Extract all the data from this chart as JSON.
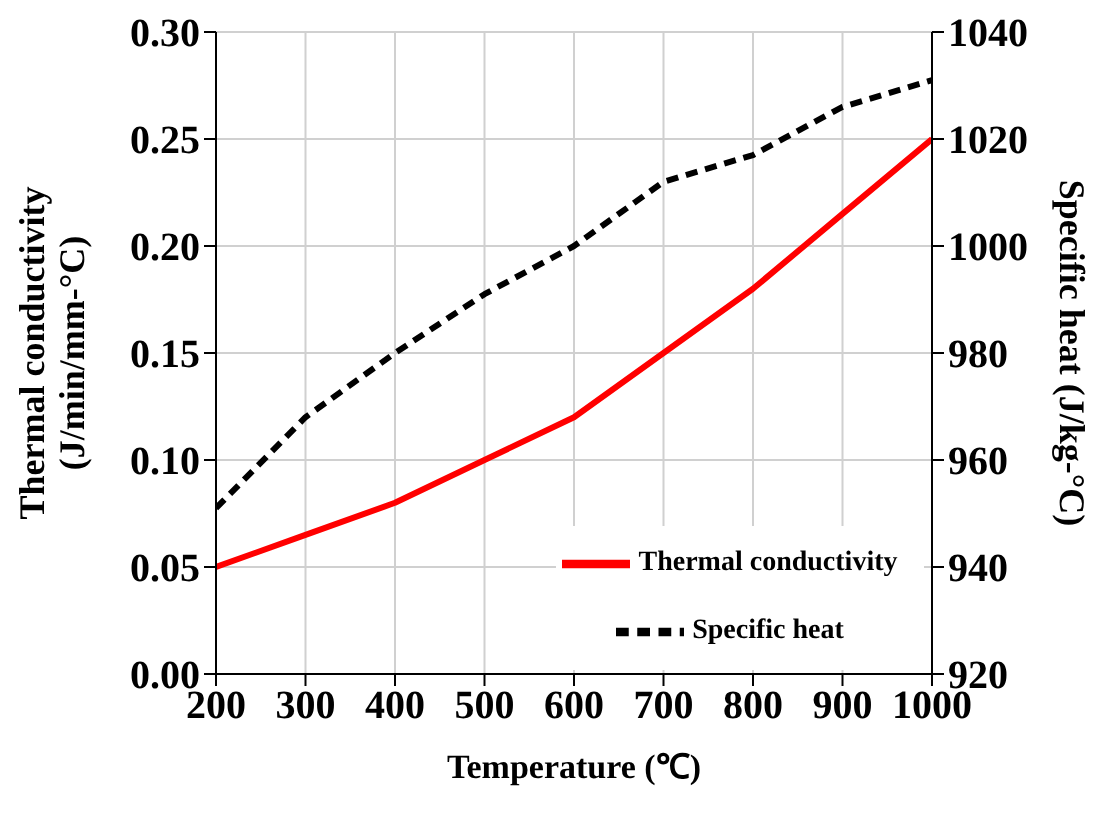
{
  "chart_data": {
    "type": "line",
    "xlabel": "Temperature (℃)",
    "ylabel": "Thermal conductivity\n(J/min/mm-°C)",
    "y2label": "Specific heat (J/kg-°C)",
    "x": [
      200,
      300,
      400,
      500,
      600,
      700,
      800,
      900,
      1000
    ],
    "series": [
      {
        "name": "Thermal conductivity",
        "color": "#ff0000",
        "line_style": "solid",
        "values": [
          0.05,
          0.065,
          0.08,
          0.1,
          0.12,
          0.15,
          0.18,
          0.215,
          0.25
        ]
      },
      {
        "name": "Specific heat",
        "color": "#000000",
        "line_style": "dashed",
        "axis": "y2",
        "values": [
          951,
          968,
          980,
          991,
          1000,
          1012,
          1017,
          1026,
          1031
        ]
      }
    ],
    "xlim": [
      200,
      1000
    ],
    "xticks": [
      200,
      300,
      400,
      500,
      600,
      700,
      800,
      900,
      1000
    ],
    "ylim": [
      0,
      0.3
    ],
    "yticks": [
      {
        "value": 0,
        "label": "0.00"
      },
      {
        "value": 0.05,
        "label": "0.05"
      },
      {
        "value": 0.1,
        "label": "0.10"
      },
      {
        "value": 0.15,
        "label": "0.15"
      },
      {
        "value": 0.2,
        "label": "0.20"
      },
      {
        "value": 0.25,
        "label": "0.25"
      },
      {
        "value": 0.3,
        "label": "0.30"
      }
    ],
    "y2lim": [
      920,
      1040
    ],
    "y2ticks": [
      920,
      940,
      960,
      980,
      1000,
      1020,
      1040
    ],
    "grid": true,
    "legend": "bottom right",
    "marker": "none"
  }
}
